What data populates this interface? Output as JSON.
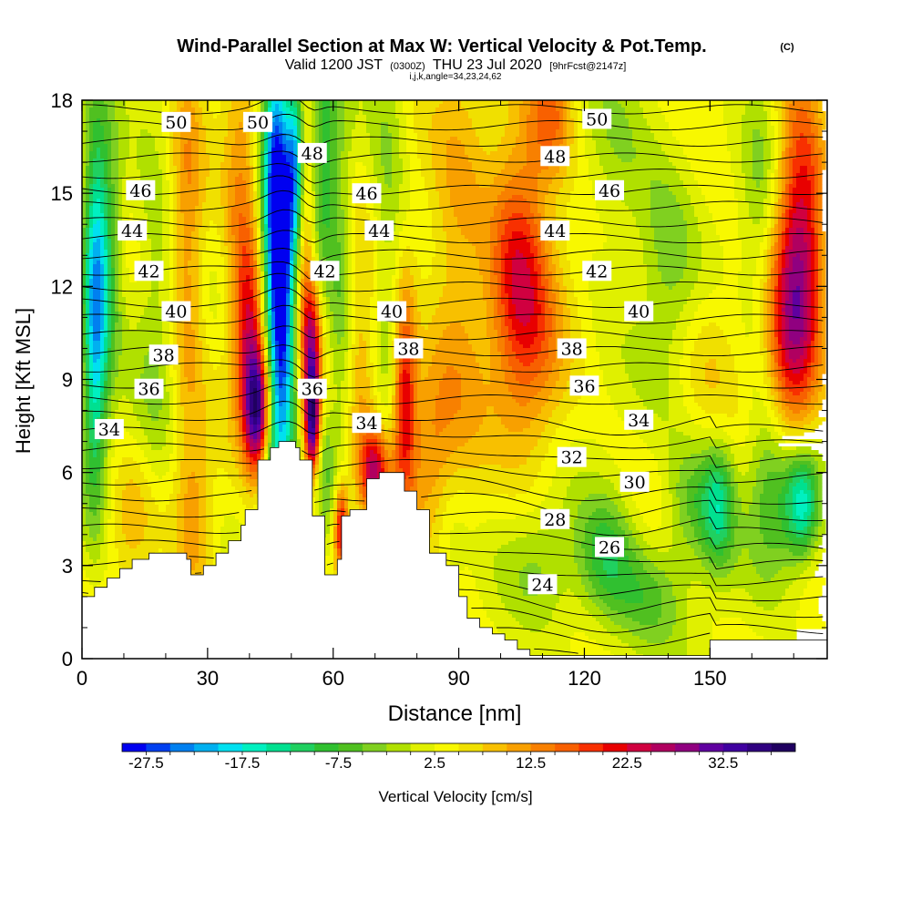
{
  "title": {
    "main": "Wind-Parallel Section at Max W: Vertical Velocity & Pot.Temp.",
    "main_suffix": "(C)",
    "valid_prefix": "Valid 1200 JST",
    "utc": "(0300Z)",
    "valid_date": "THU 23 Jul 2020",
    "forecast": "[9hrFcst@2147z]",
    "indices": "i,j,k,angle=34,23,24,62"
  },
  "chart_data": {
    "type": "heatmap",
    "xlabel": "Distance [nm]",
    "ylabel": "Height [Kft MSL]",
    "xlim": [
      0,
      178
    ],
    "ylim": [
      0,
      18
    ],
    "x_ticks": [
      "0",
      "30",
      "60",
      "90",
      "120",
      "150"
    ],
    "y_ticks": [
      "0",
      "3",
      "6",
      "9",
      "12",
      "15",
      "18"
    ],
    "x_tick_values": [
      0,
      30,
      60,
      90,
      120,
      150
    ],
    "y_tick_values": [
      0,
      3,
      6,
      9,
      12,
      15,
      18
    ],
    "colorbar": {
      "label": "Vertical Velocity [cm/s]",
      "tick_labels": [
        "-27.5",
        "-17.5",
        "-7.5",
        "2.5",
        "12.5",
        "22.5",
        "32.5"
      ],
      "tick_values": [
        -27.5,
        -17.5,
        -7.5,
        2.5,
        12.5,
        22.5,
        32.5
      ],
      "min": -30,
      "max": 40,
      "step": 2.5,
      "colors": [
        "#0000f0",
        "#0040f0",
        "#0080f0",
        "#00b0f0",
        "#00e0f0",
        "#00f0c0",
        "#00e090",
        "#20d060",
        "#30c030",
        "#50c020",
        "#80d020",
        "#b0e000",
        "#e0f000",
        "#f8f800",
        "#f0e000",
        "#f8c000",
        "#f8a000",
        "#f88000",
        "#f86000",
        "#f83000",
        "#e80000",
        "#d00040",
        "#b00060",
        "#900080",
        "#6000a0",
        "#4000a0",
        "#300080",
        "#200060"
      ]
    },
    "terrain_profile": [
      [
        0,
        2
      ],
      [
        3,
        2
      ],
      [
        3,
        2.3
      ],
      [
        6,
        2.3
      ],
      [
        6,
        2.6
      ],
      [
        9,
        2.6
      ],
      [
        9,
        2.9
      ],
      [
        12,
        2.9
      ],
      [
        12,
        3.2
      ],
      [
        16,
        3.2
      ],
      [
        16,
        3.4
      ],
      [
        25,
        3.4
      ],
      [
        25,
        3.2
      ],
      [
        26,
        3.2
      ],
      [
        26,
        2.7
      ],
      [
        29,
        2.7
      ],
      [
        29,
        3.0
      ],
      [
        32,
        3.0
      ],
      [
        32,
        3.4
      ],
      [
        35,
        3.4
      ],
      [
        35,
        3.8
      ],
      [
        38,
        3.8
      ],
      [
        38,
        4.3
      ],
      [
        39,
        4.3
      ],
      [
        39,
        4.8
      ],
      [
        42,
        4.8
      ],
      [
        42,
        6.4
      ],
      [
        45,
        6.4
      ],
      [
        45,
        6.8
      ],
      [
        47,
        6.8
      ],
      [
        47,
        7.0
      ],
      [
        51,
        7.0
      ],
      [
        51,
        6.8
      ],
      [
        52,
        6.8
      ],
      [
        52,
        6.4
      ],
      [
        55,
        6.4
      ],
      [
        55,
        4.6
      ],
      [
        58,
        4.6
      ],
      [
        58,
        2.7
      ],
      [
        61,
        2.7
      ],
      [
        61,
        3.2
      ],
      [
        62,
        3.2
      ],
      [
        62,
        4.6
      ],
      [
        64,
        4.6
      ],
      [
        64,
        4.8
      ],
      [
        68,
        4.8
      ],
      [
        68,
        5.8
      ],
      [
        71,
        5.8
      ],
      [
        71,
        6.0
      ],
      [
        77,
        6.0
      ],
      [
        77,
        5.4
      ],
      [
        80,
        5.4
      ],
      [
        80,
        4.8
      ],
      [
        83,
        4.8
      ],
      [
        83,
        3.4
      ],
      [
        87,
        3.4
      ],
      [
        87,
        3.0
      ],
      [
        90,
        3.0
      ],
      [
        90,
        2.0
      ],
      [
        92,
        2.0
      ],
      [
        92,
        1.3
      ],
      [
        95,
        1.3
      ],
      [
        95,
        1.0
      ],
      [
        98,
        1.0
      ],
      [
        98,
        0.8
      ],
      [
        101,
        0.8
      ],
      [
        101,
        0.6
      ],
      [
        104,
        0.6
      ],
      [
        104,
        0.3
      ],
      [
        107,
        0.3
      ],
      [
        107,
        0.1
      ],
      [
        130,
        0.1
      ],
      [
        130,
        0.1
      ],
      [
        150,
        0.1
      ],
      [
        150,
        0.6
      ],
      [
        178,
        0.6
      ]
    ],
    "theta_contour_labels": [
      {
        "text": "50",
        "x": 22.5,
        "y": 17.3
      },
      {
        "text": "50",
        "x": 42,
        "y": 17.3
      },
      {
        "text": "48",
        "x": 55,
        "y": 16.3
      },
      {
        "text": "46",
        "x": 14,
        "y": 15.1
      },
      {
        "text": "46",
        "x": 68,
        "y": 15.0
      },
      {
        "text": "46",
        "x": 126,
        "y": 15.1
      },
      {
        "text": "44",
        "x": 12,
        "y": 13.8
      },
      {
        "text": "44",
        "x": 71,
        "y": 13.8
      },
      {
        "text": "44",
        "x": 113,
        "y": 13.8
      },
      {
        "text": "42",
        "x": 16,
        "y": 12.5
      },
      {
        "text": "42",
        "x": 58,
        "y": 12.5
      },
      {
        "text": "42",
        "x": 123,
        "y": 12.5
      },
      {
        "text": "40",
        "x": 22.5,
        "y": 11.2
      },
      {
        "text": "40",
        "x": 74,
        "y": 11.2
      },
      {
        "text": "40",
        "x": 133,
        "y": 11.2
      },
      {
        "text": "38",
        "x": 19.5,
        "y": 9.8
      },
      {
        "text": "38",
        "x": 78,
        "y": 10.0
      },
      {
        "text": "38",
        "x": 117,
        "y": 10.0
      },
      {
        "text": "36",
        "x": 16,
        "y": 8.7
      },
      {
        "text": "36",
        "x": 55,
        "y": 8.7
      },
      {
        "text": "36",
        "x": 120,
        "y": 8.8
      },
      {
        "text": "34",
        "x": 6.5,
        "y": 7.4
      },
      {
        "text": "34",
        "x": 68,
        "y": 7.6
      },
      {
        "text": "34",
        "x": 133,
        "y": 7.7
      },
      {
        "text": "32",
        "x": 117,
        "y": 6.5
      },
      {
        "text": "30",
        "x": 132,
        "y": 5.7
      },
      {
        "text": "28",
        "x": 113,
        "y": 4.5
      },
      {
        "text": "26",
        "x": 126,
        "y": 3.6
      },
      {
        "text": "24",
        "x": 110,
        "y": 2.4
      },
      {
        "text": "50",
        "x": 123,
        "y": 17.4
      },
      {
        "text": "48",
        "x": 113,
        "y": 16.2
      }
    ],
    "velocity_features": [
      {
        "x": 3,
        "y": 11,
        "sx": 2,
        "sy": 4,
        "v": -22
      },
      {
        "x": 6,
        "y": 13,
        "sx": 2.5,
        "sy": 3,
        "v": -12
      },
      {
        "x": 18,
        "y": 12,
        "sx": 4,
        "sy": 6,
        "v": -5
      },
      {
        "x": 12,
        "y": 4.5,
        "sx": 4,
        "sy": 1.5,
        "v": 6
      },
      {
        "x": 27,
        "y": 4.5,
        "sx": 3,
        "sy": 2,
        "v": 6
      },
      {
        "x": 25,
        "y": 13,
        "sx": 3,
        "sy": 5,
        "v": 10
      },
      {
        "x": 38,
        "y": 14.5,
        "sx": 3,
        "sy": 4,
        "v": 10
      },
      {
        "x": 42,
        "y": 8,
        "sx": 2.2,
        "sy": 1.4,
        "v": 30
      },
      {
        "x": 40,
        "y": 10.5,
        "sx": 2.5,
        "sy": 2,
        "v": 15
      },
      {
        "x": 46,
        "y": 15,
        "sx": 2.2,
        "sy": 4,
        "v": -25
      },
      {
        "x": 48,
        "y": 11,
        "sx": 2.2,
        "sy": 4,
        "v": -27
      },
      {
        "x": 45,
        "y": 6,
        "sx": 2,
        "sy": 1.5,
        "v": -10
      },
      {
        "x": 55,
        "y": 7.5,
        "sx": 1.3,
        "sy": 1.2,
        "v": 30
      },
      {
        "x": 55,
        "y": 10,
        "sx": 1.5,
        "sy": 1.5,
        "v": 20
      },
      {
        "x": 53,
        "y": 13,
        "sx": 1.5,
        "sy": 3,
        "v": 10
      },
      {
        "x": 51,
        "y": 16,
        "sx": 1.5,
        "sy": 2,
        "v": -20
      },
      {
        "x": 58,
        "y": 16,
        "sx": 2,
        "sy": 3,
        "v": -12
      },
      {
        "x": 62,
        "y": 12,
        "sx": 2,
        "sy": 4,
        "v": -8
      },
      {
        "x": 62,
        "y": 4.2,
        "sx": 1.2,
        "sy": 1,
        "v": 22
      },
      {
        "x": 58,
        "y": 6,
        "sx": 1.5,
        "sy": 1.5,
        "v": -6
      },
      {
        "x": 70,
        "y": 6,
        "sx": 2.5,
        "sy": 1,
        "v": 20
      },
      {
        "x": 77,
        "y": 8.5,
        "sx": 2,
        "sy": 2.5,
        "v": 20
      },
      {
        "x": 67,
        "y": 9,
        "sx": 3,
        "sy": 3,
        "v": 8
      },
      {
        "x": 73,
        "y": 14,
        "sx": 3,
        "sy": 5,
        "v": -6
      },
      {
        "x": 90,
        "y": 12,
        "sx": 5,
        "sy": 5,
        "v": 8
      },
      {
        "x": 83,
        "y": 7,
        "sx": 4,
        "sy": 2,
        "v": 8
      },
      {
        "x": 88,
        "y": 4,
        "sx": 3,
        "sy": 1.5,
        "v": -4
      },
      {
        "x": 104,
        "y": 13,
        "sx": 5,
        "sy": 3,
        "v": 15
      },
      {
        "x": 108,
        "y": 10,
        "sx": 6,
        "sy": 3,
        "v": 8
      },
      {
        "x": 110,
        "y": 3,
        "sx": 6,
        "sy": 1.5,
        "v": -6
      },
      {
        "x": 125,
        "y": 3.2,
        "sx": 5,
        "sy": 1.5,
        "v": -12
      },
      {
        "x": 135,
        "y": 2,
        "sx": 6,
        "sy": 1.2,
        "v": -8
      },
      {
        "x": 128,
        "y": 16,
        "sx": 6,
        "sy": 2.5,
        "v": -5
      },
      {
        "x": 140,
        "y": 13,
        "sx": 5,
        "sy": 3,
        "v": -6
      },
      {
        "x": 152,
        "y": 5,
        "sx": 3,
        "sy": 1.5,
        "v": -15
      },
      {
        "x": 145,
        "y": 5,
        "sx": 4,
        "sy": 1.5,
        "v": -8
      },
      {
        "x": 172,
        "y": 5,
        "sx": 3,
        "sy": 1.3,
        "v": -20
      },
      {
        "x": 165,
        "y": 5.5,
        "sx": 4,
        "sy": 2,
        "v": -12
      },
      {
        "x": 162,
        "y": 15,
        "sx": 3,
        "sy": 4,
        "v": -5
      },
      {
        "x": 172,
        "y": 13.5,
        "sx": 4,
        "sy": 4,
        "v": 20
      },
      {
        "x": 168,
        "y": 10,
        "sx": 4,
        "sy": 3,
        "v": 12
      },
      {
        "x": 150,
        "y": 10,
        "sx": 5,
        "sy": 2,
        "v": 4
      },
      {
        "x": 112,
        "y": 17.5,
        "sx": 4,
        "sy": 1.5,
        "v": 12
      }
    ],
    "velocity_background": 3
  }
}
